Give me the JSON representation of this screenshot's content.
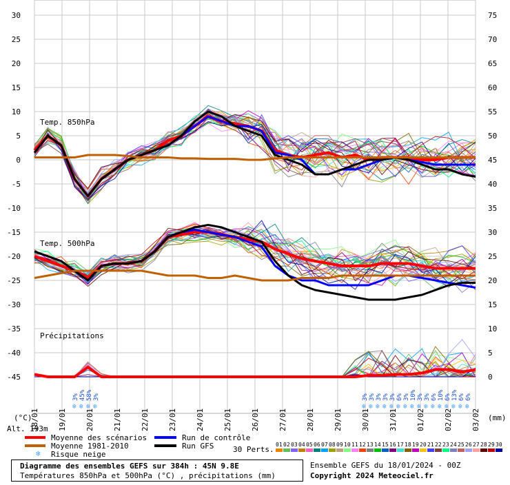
{
  "chart_data": {
    "type": "line",
    "title": "Diagramme des ensembles GEFS sur 384h : 45N 9.8E",
    "subtitle": "Températures 850hPa et 500hPa (°C) , précipitations (mm)",
    "left_axis": {
      "unit": "(°C)",
      "ticks": [
        30,
        25,
        20,
        15,
        10,
        5,
        0,
        -5,
        -10,
        -15,
        -20,
        -25,
        -30,
        -35,
        -40,
        -45
      ],
      "ylim": [
        -45,
        30
      ]
    },
    "right_axis": {
      "unit": "(mm)",
      "ticks": [
        75,
        70,
        65,
        60,
        55,
        50,
        45,
        40,
        35,
        30,
        25,
        20,
        15,
        10,
        5,
        0
      ],
      "ylim": [
        0,
        75
      ]
    },
    "x_labels": [
      "18/01",
      "19/01",
      "20/01",
      "21/01",
      "22/01",
      "23/01",
      "24/01",
      "25/01",
      "26/01",
      "27/01",
      "28/01",
      "29/01",
      "30/01",
      "31/01",
      "01/02",
      "02/02",
      "03/02"
    ],
    "panel_labels": [
      "Temp. 850hPa",
      "Temp. 500hPa",
      "Précipitations"
    ],
    "altitude_label": "Alt. 193m",
    "grid": true,
    "series": [
      {
        "name": "Moyenne des scénarios",
        "panel": "850",
        "color": "#ff0000",
        "values": [
          2,
          5,
          3,
          -4,
          -7.5,
          -4,
          -2,
          0,
          1,
          2,
          4,
          5,
          7,
          9,
          8,
          7.5,
          7,
          6,
          2,
          1,
          0.5,
          1,
          1.5,
          0.5,
          1,
          0,
          0.5,
          0.5,
          0.5,
          0,
          0,
          0.5,
          0.5,
          0.5
        ]
      },
      {
        "name": "Run de contrôle",
        "panel": "850",
        "color": "#0000ff",
        "values": [
          1.5,
          5,
          3,
          -4,
          -7.5,
          -4,
          -2,
          0,
          1,
          2,
          3,
          5,
          7,
          9,
          8,
          7,
          7,
          6,
          1.5,
          1,
          0,
          -3,
          -3,
          -2,
          -2,
          -1,
          0,
          0.5,
          0,
          -0.5,
          -1,
          -1,
          -1,
          -1
        ]
      },
      {
        "name": "Run GFS",
        "panel": "850",
        "color": "#000000",
        "values": [
          1.5,
          5,
          3,
          -4,
          -7.5,
          -4,
          -2,
          0,
          1,
          2,
          3,
          5,
          8,
          10,
          9,
          7,
          6,
          5,
          1,
          0,
          -1,
          -3,
          -3,
          -2,
          -1,
          0,
          0,
          0.5,
          0,
          -1,
          -2,
          -2,
          -3,
          -3.5
        ]
      },
      {
        "name": "Moyenne 1981-2010",
        "panel": "850",
        "color": "#c06000",
        "values": [
          0.5,
          0.5,
          0.5,
          0.5,
          1,
          1,
          1,
          0.8,
          0.5,
          0.5,
          0.5,
          0.3,
          0.3,
          0.2,
          0.2,
          0.2,
          0,
          0,
          0.3,
          0.5,
          0.5,
          0.5,
          0.5,
          0.5,
          0.5,
          0.5,
          0.5,
          0.5,
          0.5,
          0.5,
          0.5,
          0.5,
          0.5,
          0.5
        ]
      },
      {
        "name": "Moyenne des scénarios",
        "panel": "500",
        "color": "#ff0000",
        "values": [
          -20,
          -21,
          -22,
          -23,
          -24.5,
          -22,
          -21.5,
          -21.5,
          -21,
          -19,
          -16,
          -15.5,
          -15,
          -15,
          -15.5,
          -16,
          -16.5,
          -17,
          -18.5,
          -19.5,
          -20.5,
          -21,
          -21.5,
          -22,
          -22,
          -22,
          -21.5,
          -21.5,
          -21.5,
          -22,
          -22.5,
          -22.5,
          -22.5,
          -22.5
        ]
      },
      {
        "name": "Run de contrôle",
        "panel": "500",
        "color": "#0000ff",
        "values": [
          -19,
          -20,
          -21,
          -23,
          -25,
          -22,
          -21.5,
          -21.5,
          -21,
          -19,
          -16,
          -15,
          -14.5,
          -15,
          -15.5,
          -16,
          -17,
          -18,
          -22,
          -24,
          -25,
          -25,
          -26,
          -26,
          -26,
          -26,
          -25,
          -24,
          -24,
          -24.5,
          -25,
          -25.5,
          -26,
          -26.5
        ]
      },
      {
        "name": "Run GFS",
        "panel": "500",
        "color": "#000000",
        "values": [
          -19,
          -20,
          -21,
          -23,
          -25,
          -22,
          -21.5,
          -21.5,
          -21,
          -19,
          -16,
          -15,
          -14,
          -13.5,
          -14,
          -15,
          -16,
          -17,
          -21,
          -24,
          -26,
          -27,
          -27.5,
          -28,
          -28.5,
          -29,
          -29,
          -29,
          -28.5,
          -28,
          -27,
          -26,
          -25.5,
          -25.5
        ]
      },
      {
        "name": "Moyenne 1981-2010",
        "panel": "500",
        "color": "#c06000",
        "values": [
          -24.5,
          -24,
          -23.5,
          -23,
          -23,
          -23,
          -23,
          -23,
          -23,
          -23.5,
          -24,
          -24,
          -24,
          -24.5,
          -24.5,
          -24,
          -24.5,
          -25,
          -25,
          -25,
          -24.5,
          -24.5,
          -24.5,
          -24,
          -24,
          -24,
          -24,
          -24,
          -24,
          -24,
          -24,
          -24,
          -24,
          -24
        ]
      },
      {
        "name": "Moyenne des scénarios",
        "panel": "precip",
        "color": "#ff0000",
        "values": [
          0.5,
          0,
          0,
          0,
          2,
          0,
          0,
          0,
          0,
          0,
          0,
          0,
          0,
          0,
          0,
          0,
          0,
          0,
          0,
          0,
          0,
          0,
          0,
          0,
          0,
          0.3,
          0.3,
          0.5,
          0.5,
          0.8,
          1.5,
          1.5,
          1,
          1.5
        ]
      }
    ],
    "snow_risk": {
      "dates_1": [
        "19/01 18h",
        "20/01 00h",
        "20/01 06h",
        "20/01 12h"
      ],
      "labels_1": [
        "3%",
        "45%",
        "58%",
        "3%"
      ],
      "labels_2": [
        "3%",
        "3%",
        "3%",
        "3%",
        "3%",
        "6%",
        "3%",
        "10%",
        "3%",
        "3%",
        "6%",
        "10%",
        "6%",
        "13%",
        "6%",
        "6%"
      ]
    }
  },
  "legend": {
    "mean": "Moyenne des scénarios",
    "climatology": "Moyenne 1981-2010",
    "snow": "Risque neige",
    "control": "Run de contrôle",
    "gfs": "Run GFS",
    "perts_label": "30 Perts.",
    "perts": [
      "01",
      "02",
      "03",
      "04",
      "05",
      "06",
      "07",
      "08",
      "09",
      "10",
      "11",
      "12",
      "13",
      "14",
      "15",
      "16",
      "17",
      "18",
      "19",
      "20",
      "21",
      "22",
      "23",
      "24",
      "25",
      "26",
      "27",
      "28",
      "29",
      "30"
    ],
    "pert_colors": [
      "#f08000",
      "#60c060",
      "#8060ff",
      "#c08000",
      "#ff60c0",
      "#008080",
      "#00a0ff",
      "#a0a000",
      "#c0a080",
      "#80ff80",
      "#ff80ff",
      "#ff4000",
      "#808080",
      "#00c000",
      "#0060c0",
      "#800080",
      "#40e0d0",
      "#806000",
      "#c000c0",
      "#ffc000",
      "#4040ff",
      "#804040",
      "#00ff80",
      "#8080c0",
      "#c06060",
      "#a0a0ff",
      "#ffa0a0",
      "#600000",
      "#c00000",
      "#0000a0"
    ]
  },
  "footer": {
    "title": "Diagramme des ensembles GEFS sur 384h : 45N 9.8E",
    "subtitle": "Températures 850hPa et 500hPa (°C) , précipitations (mm)",
    "run": "Ensemble GEFS du 18/01/2024 - 00Z",
    "copyright": "Copyright 2024 Meteociel.fr"
  }
}
